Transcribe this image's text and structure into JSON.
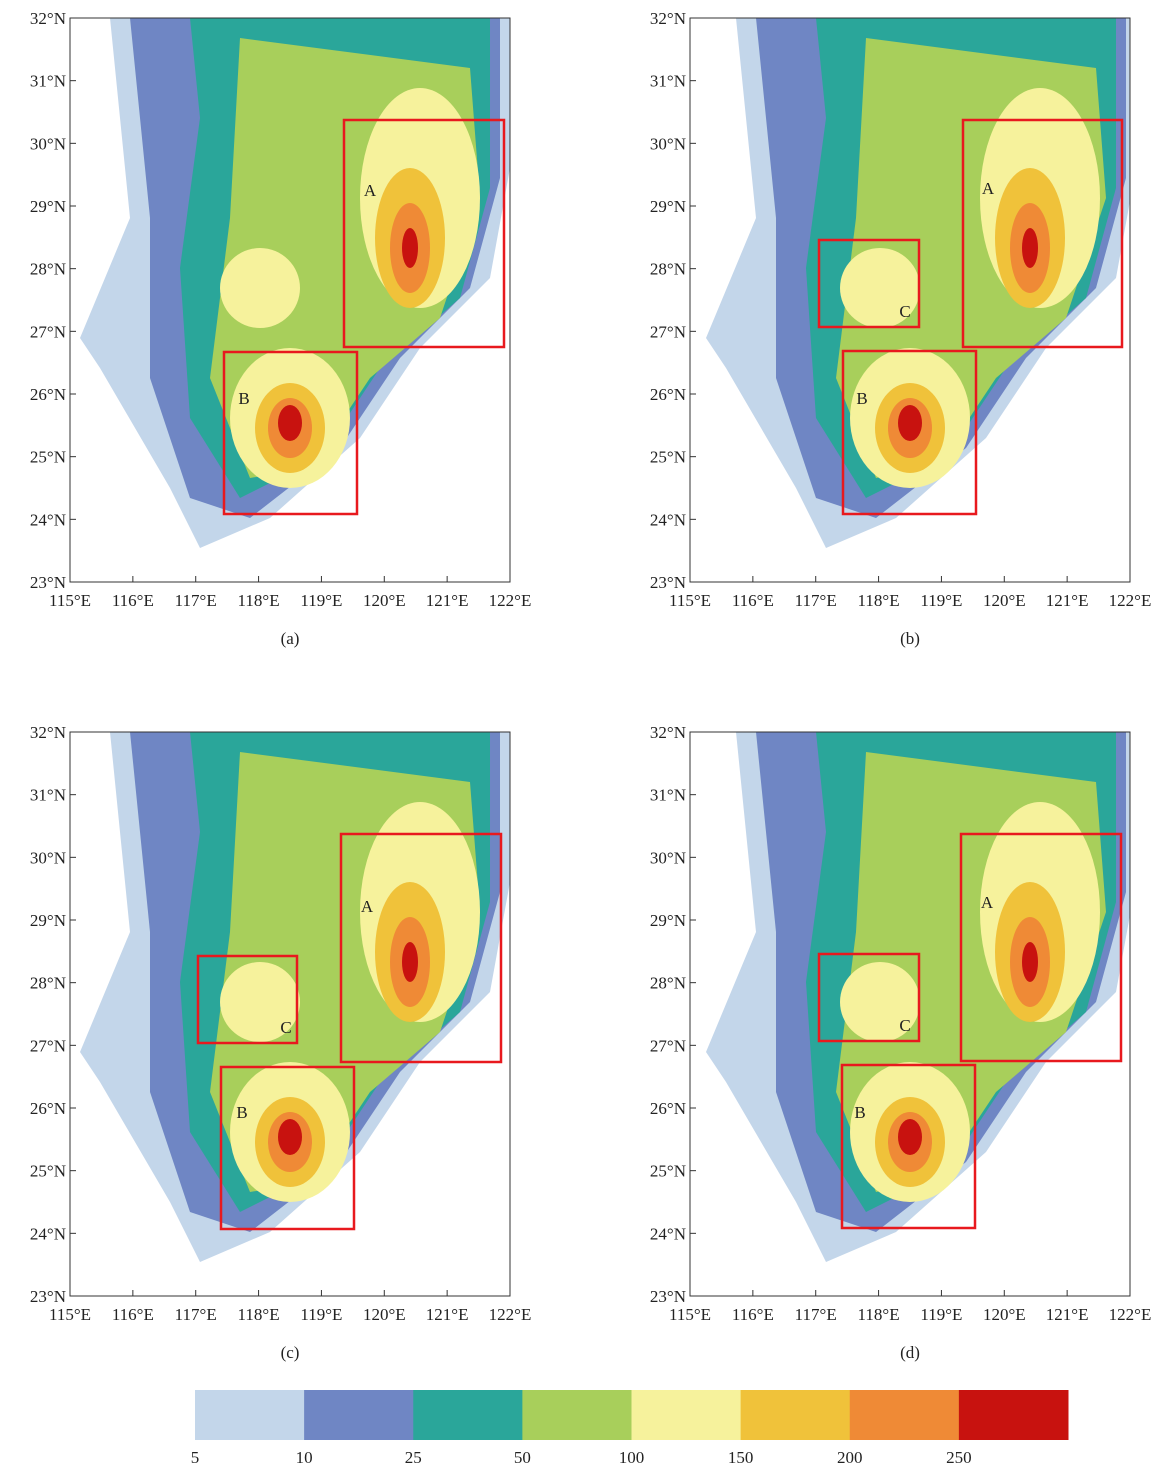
{
  "figure": {
    "panels": [
      {
        "label": "(a)",
        "boxes": [
          "A",
          "B"
        ]
      },
      {
        "label": "(b)",
        "boxes": [
          "A",
          "C",
          "B"
        ]
      },
      {
        "label": "(c)",
        "boxes": [
          "A",
          "C",
          "B"
        ]
      },
      {
        "label": "(d)",
        "boxes": [
          "A",
          "C",
          "B"
        ]
      }
    ],
    "axes": {
      "xlim": [
        115,
        122
      ],
      "ylim": [
        23,
        32
      ],
      "xticks": [
        {
          "value": 115,
          "label": "115°E"
        },
        {
          "value": 116,
          "label": "116°E"
        },
        {
          "value": 117,
          "label": "117°E"
        },
        {
          "value": 118,
          "label": "118°E"
        },
        {
          "value": 119,
          "label": "119°E"
        },
        {
          "value": 120,
          "label": "120°E"
        },
        {
          "value": 121,
          "label": "121°E"
        },
        {
          "value": 122,
          "label": "122°E"
        }
      ],
      "yticks": [
        {
          "value": 23,
          "label": "23°N"
        },
        {
          "value": 24,
          "label": "24°N"
        },
        {
          "value": 25,
          "label": "25°N"
        },
        {
          "value": 26,
          "label": "26°N"
        },
        {
          "value": 27,
          "label": "27°N"
        },
        {
          "value": 28,
          "label": "28°N"
        },
        {
          "value": 29,
          "label": "29°N"
        },
        {
          "value": 30,
          "label": "30°N"
        },
        {
          "value": 31,
          "label": "31°N"
        },
        {
          "value": 32,
          "label": "32°N"
        }
      ]
    },
    "colorbar": {
      "colors": [
        "#c3d6ea",
        "#6f86c4",
        "#2aa69a",
        "#a8cf5b",
        "#f6f29c",
        "#f0c23a",
        "#ef8a36",
        "#c8120f"
      ],
      "ticks": [
        5,
        10,
        25,
        50,
        100,
        150,
        200,
        250
      ]
    }
  }
}
